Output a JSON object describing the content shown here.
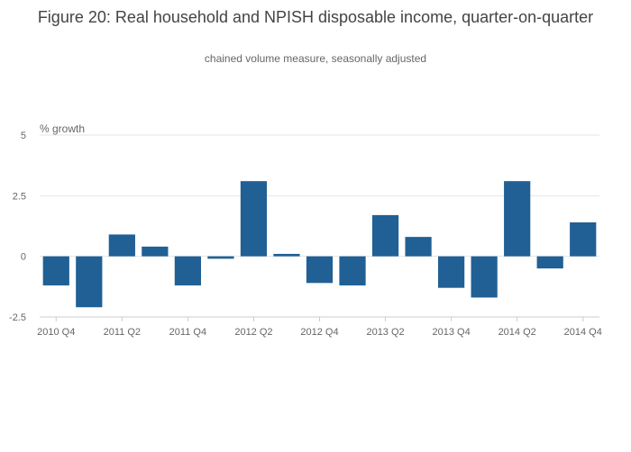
{
  "chart_data": {
    "type": "bar",
    "title": "Figure 20: Real household and NPISH disposable income, quarter-on-quarter",
    "subtitle": "chained volume measure, seasonally adjusted",
    "ylabel": "% growth",
    "xlabel": "",
    "ylim": [
      -2.5,
      5
    ],
    "yticks": [
      "5",
      "2.5",
      "0",
      "-2.5"
    ],
    "ytick_values": [
      5,
      2.5,
      0,
      -2.5
    ],
    "categories": [
      "2010 Q4",
      "2011 Q1",
      "2011 Q2",
      "2011 Q3",
      "2011 Q4",
      "2012 Q1",
      "2012 Q2",
      "2012 Q3",
      "2012 Q4",
      "2013 Q1",
      "2013 Q2",
      "2013 Q3",
      "2013 Q4",
      "2014 Q1",
      "2014 Q2",
      "2014 Q3",
      "2014 Q4"
    ],
    "xtick_labels": [
      "2010 Q4",
      "2011 Q2",
      "2011 Q4",
      "2012 Q2",
      "2012 Q4",
      "2013 Q2",
      "2013 Q4",
      "2014 Q2",
      "2014 Q4"
    ],
    "values": [
      -1.2,
      -2.1,
      0.9,
      0.4,
      -1.2,
      -0.1,
      3.1,
      0.1,
      -1.1,
      -1.2,
      1.7,
      0.8,
      -1.3,
      -1.7,
      3.1,
      -0.5,
      1.4
    ],
    "color": "#206095",
    "grid": true
  }
}
